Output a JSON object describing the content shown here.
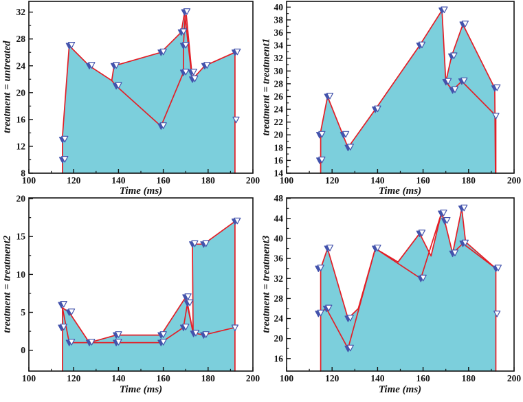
{
  "colors": {
    "fill": "#7ccfdc",
    "line": "#e31e26",
    "marker": "#4353ac",
    "marker_open_fill": "#ffffff",
    "axis": "#111111",
    "background": "#ffffff"
  },
  "chart_data": [
    {
      "id": "untreated",
      "type": "area",
      "ylabel": "treatment = untreated",
      "xlabel": "Time (ms)",
      "xlim": [
        100,
        200
      ],
      "ylim": [
        8,
        33.6
      ],
      "xticks": [
        100,
        120,
        140,
        160,
        180,
        200
      ],
      "yticks": [
        8,
        12,
        16,
        20,
        24,
        28,
        32
      ],
      "grid": false,
      "fill": [
        [
          115,
          8
        ],
        [
          115,
          13.5
        ],
        [
          118,
          27
        ],
        [
          127,
          24
        ],
        [
          137,
          21.8
        ],
        [
          138,
          24
        ],
        [
          159,
          26
        ],
        [
          168,
          29
        ],
        [
          169.5,
          32
        ],
        [
          172.5,
          23
        ],
        [
          173,
          22
        ],
        [
          178.5,
          24
        ],
        [
          192,
          26
        ],
        [
          192,
          8
        ]
      ],
      "lines": [
        [
          [
            115,
            8
          ],
          [
            115,
            13.5
          ],
          [
            118,
            27
          ],
          [
            127,
            24
          ],
          [
            137,
            21.8
          ],
          [
            138,
            24
          ],
          [
            159,
            26
          ],
          [
            168,
            29
          ],
          [
            169.5,
            32
          ],
          [
            172.5,
            23
          ],
          [
            173,
            22
          ],
          [
            178.5,
            24
          ],
          [
            192,
            26
          ],
          [
            192,
            8
          ]
        ],
        [
          [
            137,
            21.8
          ],
          [
            139,
            21
          ],
          [
            159,
            15
          ],
          [
            169,
            23
          ],
          [
            169,
            27
          ],
          [
            169.8,
            31.8
          ]
        ],
        [
          [
            170.3,
            31.5
          ],
          [
            173,
            22
          ]
        ]
      ],
      "markers": [
        [
          115,
          10
        ],
        [
          115,
          13
        ],
        [
          118,
          27
        ],
        [
          127,
          24
        ],
        [
          138,
          24
        ],
        [
          139,
          21
        ],
        [
          159,
          26
        ],
        [
          159,
          15
        ],
        [
          168,
          29
        ],
        [
          169,
          23
        ],
        [
          169,
          27
        ],
        [
          169.5,
          32
        ],
        [
          172.5,
          23
        ],
        [
          173,
          22
        ],
        [
          178.5,
          24
        ],
        [
          192,
          26
        ],
        [
          192.5,
          16,
          "open"
        ]
      ]
    },
    {
      "id": "treatment1",
      "type": "area",
      "ylabel": "treatment = treatment1",
      "xlabel": "Time (ms)",
      "xlim": [
        100,
        200
      ],
      "ylim": [
        14,
        40.9
      ],
      "xticks": [
        100,
        120,
        140,
        160,
        180,
        200
      ],
      "yticks": [
        14,
        16,
        18,
        20,
        22,
        24,
        26,
        28,
        30,
        32,
        34,
        36,
        38,
        40
      ],
      "grid": false,
      "fill": [
        [
          115,
          14
        ],
        [
          115,
          20.5
        ],
        [
          118,
          26
        ],
        [
          127,
          18
        ],
        [
          139,
          24
        ],
        [
          158.5,
          34
        ],
        [
          168.3,
          39.5
        ],
        [
          170,
          28.3
        ],
        [
          172.5,
          32.3
        ],
        [
          177.5,
          37.3
        ],
        [
          191.5,
          27.3
        ],
        [
          191.8,
          14
        ]
      ],
      "lines": [
        [
          [
            115,
            14
          ],
          [
            115,
            20.5
          ],
          [
            118,
            26
          ],
          [
            127,
            18
          ],
          [
            139,
            24
          ],
          [
            158.5,
            34
          ],
          [
            168.3,
            39.5
          ],
          [
            170,
            28.3
          ],
          [
            172.5,
            32.3
          ],
          [
            177.5,
            37.3
          ],
          [
            191.5,
            27.3
          ],
          [
            191.8,
            14
          ]
        ],
        [
          [
            170,
            28.3
          ],
          [
            173,
            27
          ],
          [
            177,
            28.4
          ],
          [
            192,
            23
          ],
          [
            192,
            14
          ]
        ]
      ],
      "markers": [
        [
          114.5,
          16
        ],
        [
          114.5,
          20
        ],
        [
          118,
          26
        ],
        [
          125,
          20
        ],
        [
          127,
          18
        ],
        [
          139,
          24
        ],
        [
          158.5,
          34
        ],
        [
          168.3,
          39.5
        ],
        [
          170,
          28.3
        ],
        [
          172.5,
          32.3
        ],
        [
          173,
          27
        ],
        [
          177,
          28.4
        ],
        [
          177.5,
          37.3
        ],
        [
          191.5,
          27.3
        ],
        [
          192,
          23,
          "open"
        ]
      ]
    },
    {
      "id": "treatment2",
      "type": "area",
      "ylabel": "treatment = treatment2",
      "xlabel": "Time (ms)",
      "xlim": [
        100,
        200
      ],
      "ylim": [
        -2.75,
        20.1
      ],
      "xticks": [
        100,
        120,
        140,
        160,
        180,
        200
      ],
      "yticks": [
        0,
        5,
        10,
        15,
        20
      ],
      "grid": false,
      "fill": [
        [
          115,
          -2.75
        ],
        [
          115,
          5.6
        ],
        [
          118,
          5
        ],
        [
          127,
          1
        ],
        [
          139,
          2
        ],
        [
          159,
          2
        ],
        [
          170,
          7
        ],
        [
          173.3,
          2.3
        ],
        [
          173,
          14
        ],
        [
          178,
          14
        ],
        [
          192,
          17
        ],
        [
          192,
          -2.75
        ]
      ],
      "lines": [
        [
          [
            115,
            -2.75
          ],
          [
            115,
            5.6
          ],
          [
            118,
            5
          ],
          [
            127,
            1
          ],
          [
            139,
            2
          ],
          [
            159,
            2
          ],
          [
            170,
            7
          ],
          [
            173.3,
            2.3
          ],
          [
            173,
            14
          ],
          [
            178,
            14
          ],
          [
            192,
            17
          ],
          [
            192,
            -2.75
          ]
        ],
        [
          [
            115,
            5.6
          ],
          [
            118,
            1
          ],
          [
            127,
            1
          ],
          [
            139,
            1
          ],
          [
            159,
            1
          ],
          [
            169,
            3
          ],
          [
            170.8,
            6.2
          ],
          [
            173.3,
            2.3
          ],
          [
            178,
            2
          ],
          [
            192,
            3
          ]
        ]
      ],
      "markers": [
        [
          114.5,
          6
        ],
        [
          114.5,
          3
        ],
        [
          118,
          5
        ],
        [
          118,
          1
        ],
        [
          127,
          1
        ],
        [
          139,
          2
        ],
        [
          139,
          1
        ],
        [
          159,
          2
        ],
        [
          159,
          1
        ],
        [
          170,
          7
        ],
        [
          170.8,
          6.2
        ],
        [
          169,
          3
        ],
        [
          173,
          14
        ],
        [
          178,
          14
        ],
        [
          173.5,
          2.2
        ],
        [
          178,
          2
        ],
        [
          192,
          17
        ],
        [
          192,
          3,
          "open"
        ]
      ]
    },
    {
      "id": "treatment3",
      "type": "area",
      "ylabel": "treatment = treatment3",
      "xlabel": "Time (ms)",
      "xlim": [
        100,
        200
      ],
      "ylim": [
        13.5,
        48.1
      ],
      "xticks": [
        100,
        120,
        140,
        160,
        180,
        200
      ],
      "yticks": [
        16,
        20,
        24,
        28,
        32,
        36,
        40,
        44,
        48
      ],
      "grid": false,
      "fill": [
        [
          115,
          13.5
        ],
        [
          115,
          34
        ],
        [
          118,
          38
        ],
        [
          127,
          24
        ],
        [
          131.5,
          26
        ],
        [
          139,
          38
        ],
        [
          149,
          35.3
        ],
        [
          158.5,
          41
        ],
        [
          163.5,
          36.5
        ],
        [
          168,
          45
        ],
        [
          169.5,
          43.5
        ],
        [
          173,
          37
        ],
        [
          177,
          46
        ],
        [
          178.7,
          39.3
        ],
        [
          192,
          34
        ],
        [
          192,
          13.5
        ]
      ],
      "lines": [
        [
          [
            115,
            13.5
          ],
          [
            115,
            34
          ],
          [
            118,
            38
          ],
          [
            127,
            24
          ],
          [
            131.5,
            26
          ],
          [
            139,
            38
          ],
          [
            149,
            35.3
          ],
          [
            158.5,
            41
          ],
          [
            163.5,
            36.5
          ],
          [
            168,
            45
          ],
          [
            169.5,
            43.5
          ],
          [
            173,
            37
          ],
          [
            177,
            46
          ],
          [
            178.7,
            39.3
          ],
          [
            192,
            34
          ],
          [
            192,
            13.5
          ]
        ],
        [
          [
            114,
            25
          ],
          [
            117.5,
            26
          ],
          [
            127,
            18
          ],
          [
            139,
            38
          ]
        ],
        [
          [
            139,
            38
          ],
          [
            159,
            32
          ],
          [
            168,
            45
          ]
        ],
        [
          [
            173,
            37
          ],
          [
            177.5,
            39
          ],
          [
            192,
            34
          ]
        ]
      ],
      "markers": [
        [
          114,
          34
        ],
        [
          114,
          25
        ],
        [
          117.5,
          26
        ],
        [
          118,
          38
        ],
        [
          127,
          24
        ],
        [
          127,
          18
        ],
        [
          139,
          38
        ],
        [
          158.5,
          41
        ],
        [
          159,
          32
        ],
        [
          168,
          45
        ],
        [
          169.5,
          43.5
        ],
        [
          173,
          37
        ],
        [
          177,
          46
        ],
        [
          177.5,
          39
        ],
        [
          192,
          34
        ],
        [
          192.5,
          25,
          "open"
        ]
      ]
    }
  ]
}
